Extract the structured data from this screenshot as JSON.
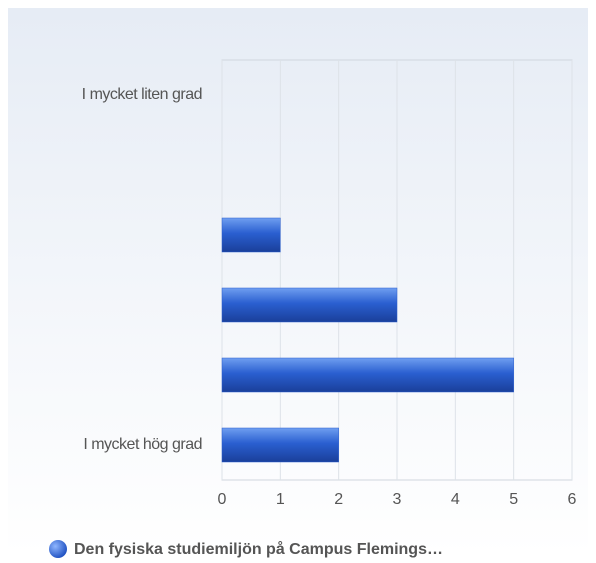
{
  "chart_data": {
    "type": "bar",
    "orientation": "horizontal",
    "categories": [
      "I mycket liten grad",
      null,
      null,
      null,
      null,
      "I mycket hög grad"
    ],
    "series": [
      {
        "name": "Den fysiska studiemiljön på Campus Flemings…",
        "color": "#2a5fd0",
        "values": [
          0,
          0,
          1,
          3,
          5,
          2
        ]
      }
    ],
    "xlim": [
      0,
      6
    ],
    "xticks": [
      0,
      1,
      2,
      3,
      4,
      5,
      6
    ],
    "grid": true,
    "legend": "bottom"
  }
}
